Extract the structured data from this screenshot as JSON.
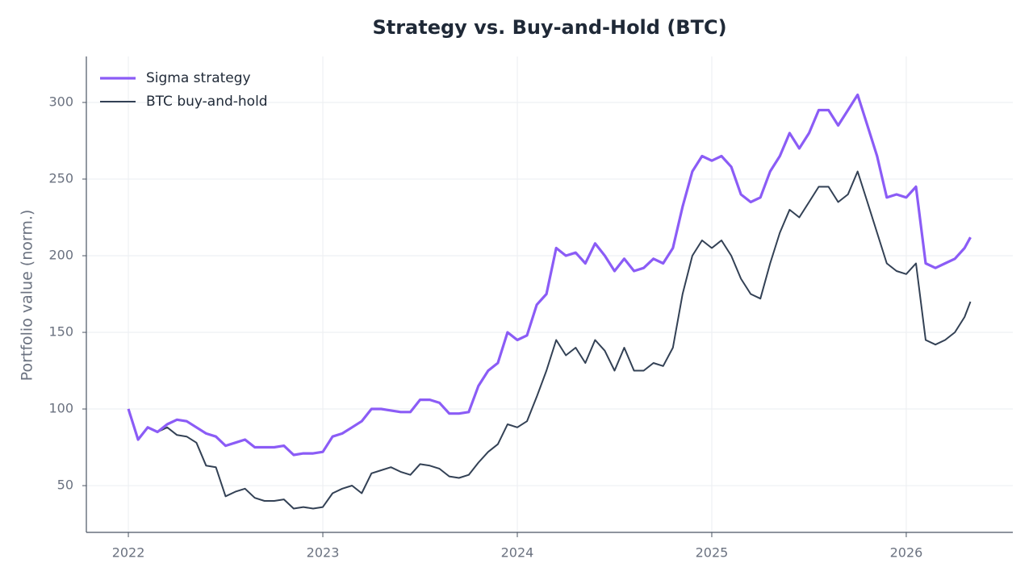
{
  "chart_data": {
    "type": "line",
    "title": "Strategy vs. Buy-and-Hold (BTC)",
    "y_label": "Portfolio value (norm.)",
    "x": [
      2022.0,
      2022.05,
      2022.1,
      2022.15,
      2022.2,
      2022.25,
      2022.3,
      2022.35,
      2022.4,
      2022.45,
      2022.5,
      2022.55,
      2022.6,
      2022.65,
      2022.7,
      2022.75,
      2022.8,
      2022.85,
      2022.9,
      2022.95,
      2023.0,
      2023.05,
      2023.1,
      2023.15,
      2023.2,
      2023.25,
      2023.3,
      2023.35,
      2023.4,
      2023.45,
      2023.5,
      2023.55,
      2023.6,
      2023.65,
      2023.7,
      2023.75,
      2023.8,
      2023.85,
      2023.9,
      2023.95,
      2024.0,
      2024.05,
      2024.1,
      2024.15,
      2024.2,
      2024.25,
      2024.3,
      2024.35,
      2024.4,
      2024.45,
      2024.5,
      2024.55,
      2024.6,
      2024.65,
      2024.7,
      2024.75,
      2024.8,
      2024.85,
      2024.9,
      2024.95,
      2025.0,
      2025.05,
      2025.1,
      2025.15,
      2025.2,
      2025.25,
      2025.3,
      2025.35,
      2025.4,
      2025.45,
      2025.5,
      2025.55,
      2025.6,
      2025.65,
      2025.7,
      2025.75,
      2025.8,
      2025.85,
      2025.9,
      2025.95,
      2026.0,
      2026.05,
      2026.1,
      2026.15,
      2026.2,
      2026.25,
      2026.3,
      2026.33
    ],
    "series": [
      {
        "name": "Sigma strategy",
        "color": "#8b5cf6",
        "width": 3.2,
        "values": [
          100,
          80,
          88,
          85,
          90,
          93,
          92,
          88,
          84,
          82,
          76,
          78,
          80,
          75,
          75,
          75,
          76,
          70,
          71,
          71,
          72,
          82,
          84,
          88,
          92,
          100,
          100,
          99,
          98,
          98,
          106,
          106,
          104,
          97,
          97,
          98,
          115,
          125,
          130,
          150,
          145,
          148,
          168,
          175,
          205,
          200,
          202,
          195,
          208,
          200,
          190,
          198,
          190,
          192,
          198,
          195,
          205,
          232,
          255,
          265,
          262,
          265,
          258,
          240,
          235,
          238,
          255,
          265,
          280,
          270,
          280,
          295,
          295,
          285,
          295,
          305,
          285,
          265,
          238,
          240,
          238,
          245,
          195,
          192,
          195,
          198,
          205,
          212
        ]
      },
      {
        "name": "BTC buy-and-hold",
        "color": "#334155",
        "width": 2,
        "values": [
          100,
          80,
          88,
          85,
          88,
          83,
          82,
          78,
          63,
          62,
          43,
          46,
          48,
          42,
          40,
          40,
          41,
          35,
          36,
          35,
          36,
          45,
          48,
          50,
          45,
          58,
          60,
          62,
          59,
          57,
          64,
          63,
          61,
          56,
          55,
          57,
          65,
          72,
          77,
          90,
          88,
          92,
          108,
          125,
          145,
          135,
          140,
          130,
          145,
          138,
          125,
          140,
          125,
          125,
          130,
          128,
          140,
          175,
          200,
          210,
          205,
          210,
          200,
          185,
          175,
          172,
          195,
          215,
          230,
          225,
          235,
          245,
          245,
          235,
          240,
          255,
          235,
          215,
          195,
          190,
          188,
          195,
          145,
          142,
          145,
          150,
          160,
          170
        ]
      }
    ],
    "xlim": [
      2021.784,
      2026.548
    ],
    "xticks": [
      2022,
      2023,
      2024,
      2025,
      2026
    ],
    "ylim": [
      19.5,
      330
    ],
    "yticks": [
      50,
      100,
      150,
      200,
      250,
      300
    ],
    "grid": true,
    "legend": "upper left"
  }
}
